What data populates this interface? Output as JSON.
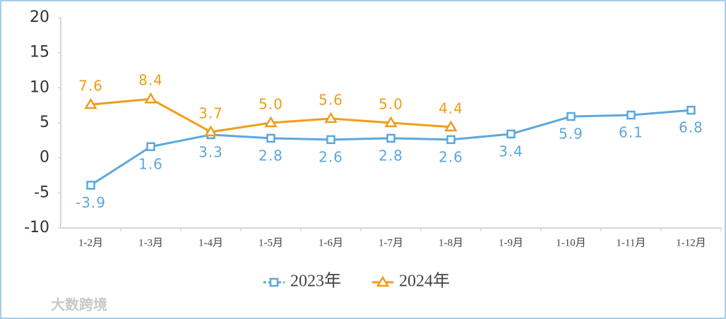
{
  "chart_data": {
    "type": "line",
    "categories": [
      "1-2月",
      "1-3月",
      "1-4月",
      "1-5月",
      "1-6月",
      "1-7月",
      "1-8月",
      "1-9月",
      "1-10月",
      "1-11月",
      "1-12月"
    ],
    "series": [
      {
        "name": "2023年",
        "color": "#5ba8de",
        "marker": "square",
        "values": [
          -3.9,
          1.6,
          3.3,
          2.8,
          2.6,
          2.8,
          2.6,
          3.4,
          5.9,
          6.1,
          6.8
        ],
        "value_labels": [
          "-3.9",
          "1.6",
          "3.3",
          "2.8",
          "2.6",
          "2.8",
          "2.6",
          "3.4",
          "5.9",
          "6.1",
          "6.8"
        ]
      },
      {
        "name": "2024年",
        "color": "#f09d1a",
        "marker": "triangle",
        "values": [
          7.6,
          8.4,
          3.7,
          5.0,
          5.6,
          5.0,
          4.4,
          null,
          null,
          null,
          null
        ],
        "value_labels": [
          "7.6",
          "8.4",
          "3.7",
          "5.0",
          "5.6",
          "5.0",
          "4.4",
          null,
          null,
          null,
          null
        ]
      }
    ],
    "ylim": [
      -10,
      20
    ],
    "yticks": [
      -10,
      -5,
      0,
      5,
      10,
      15,
      20
    ],
    "grid": false,
    "legend": "bottom",
    "watermark": "大数跨境"
  }
}
